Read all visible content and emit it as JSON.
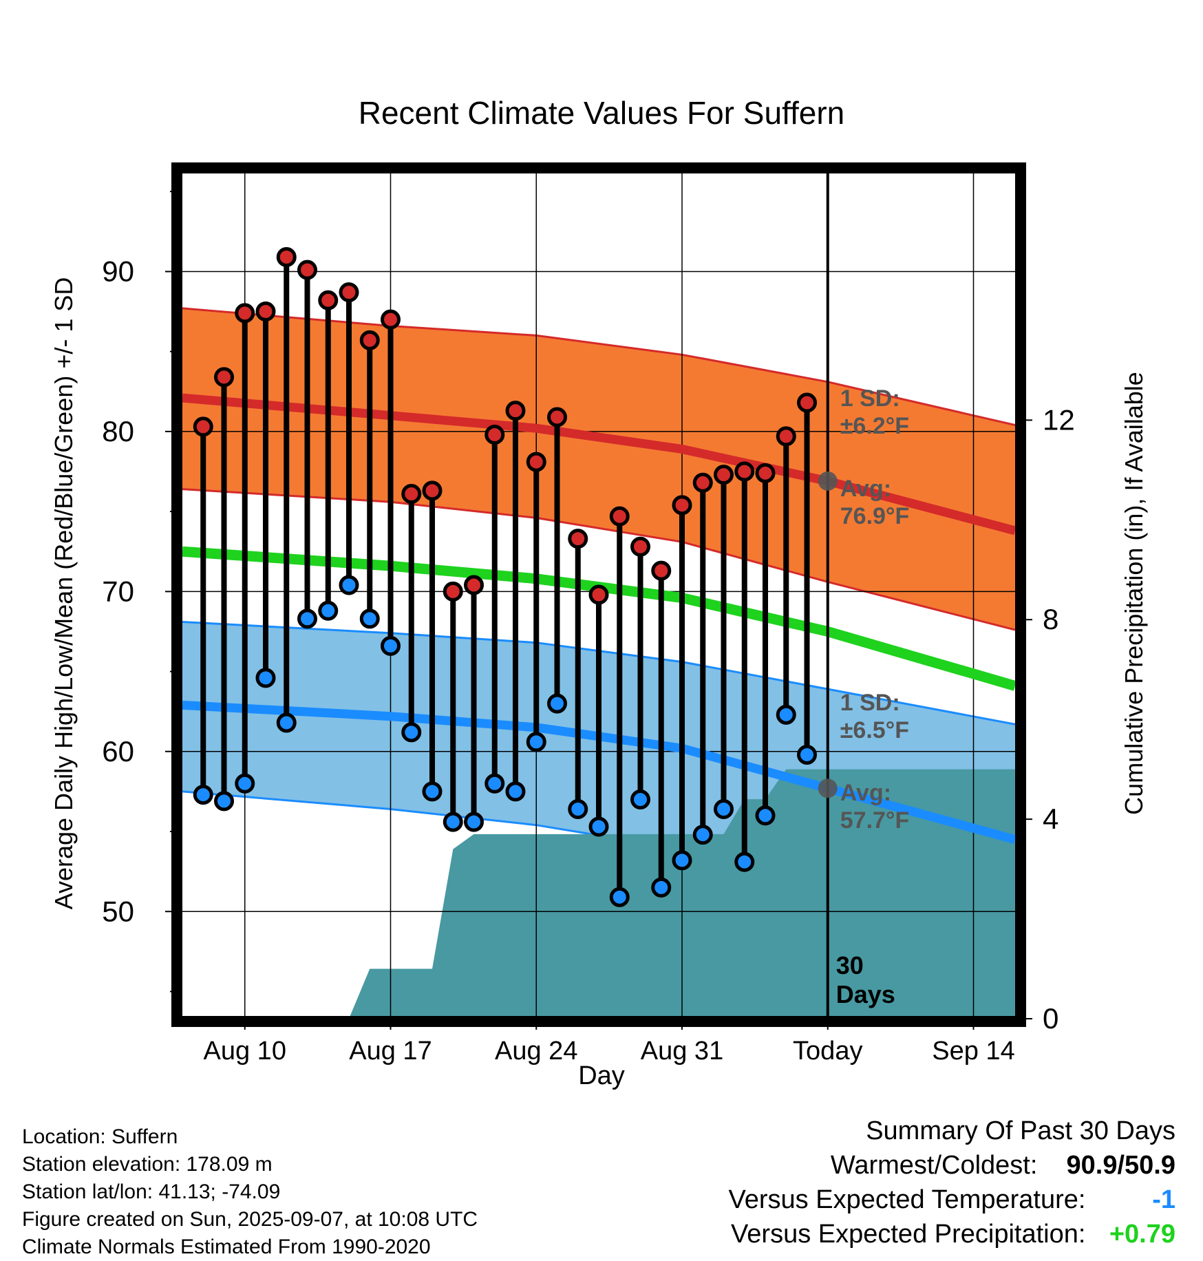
{
  "chart_data": {
    "type": "line",
    "title": "Recent Climate Values For Suffern",
    "xlabel": "Day",
    "ylabel_left": "Average Daily High/Low/Mean (Red/Blue/Green) +/- 1 SD",
    "ylabel_right": "Cumulative Precipitation (in), If Available",
    "ylim_left": [
      43.3,
      96.3
    ],
    "ylim_right": [
      0,
      17
    ],
    "xlim": [
      "2025-08-07",
      "2025-09-16"
    ],
    "x_ticks": [
      {
        "date": "2025-08-10",
        "label": "Aug 10"
      },
      {
        "date": "2025-08-17",
        "label": "Aug 17"
      },
      {
        "date": "2025-08-24",
        "label": "Aug 24"
      },
      {
        "date": "2025-08-31",
        "label": "Aug 31"
      },
      {
        "date": "2025-09-07",
        "label": "Today"
      },
      {
        "date": "2025-09-14",
        "label": "Sep 14"
      }
    ],
    "y_ticks_left": [
      "50",
      "60",
      "70",
      "80",
      "90"
    ],
    "y_ticks_right": [
      "0",
      "4",
      "8",
      "12"
    ],
    "grid": true,
    "today": "2025-09-07",
    "period_label": [
      "30",
      "Days"
    ],
    "normals": {
      "dates": [
        "2025-08-07",
        "2025-08-17",
        "2025-08-24",
        "2025-08-31",
        "2025-09-07",
        "2025-09-16"
      ],
      "high_mean": [
        82.1,
        81.0,
        80.2,
        78.9,
        76.9,
        73.8
      ],
      "high_upper": [
        87.7,
        86.6,
        86.0,
        84.8,
        83.1,
        80.4
      ],
      "high_lower": [
        76.4,
        75.6,
        74.6,
        73.1,
        70.6,
        67.6
      ],
      "low_mean": [
        62.9,
        62.2,
        61.5,
        60.2,
        57.7,
        54.5
      ],
      "low_upper": [
        68.1,
        67.4,
        66.8,
        65.6,
        63.9,
        61.7
      ],
      "low_lower": [
        57.5,
        56.4,
        55.4,
        53.9,
        51.2,
        47.8
      ],
      "avg_mean": [
        72.5,
        71.6,
        70.8,
        69.6,
        67.5,
        64.1
      ]
    },
    "high_annotation": {
      "sd": "1 SD:",
      "sd_value": "±6.2°F",
      "avg": "Avg:",
      "avg_value": "76.9°F",
      "today_value": 76.9
    },
    "low_annotation": {
      "sd": "1 SD:",
      "sd_value": "±6.5°F",
      "avg": "Avg:",
      "avg_value": "57.7°F",
      "today_value": 57.7
    },
    "observations": {
      "dates": [
        "2025-08-08",
        "2025-08-09",
        "2025-08-10",
        "2025-08-11",
        "2025-08-12",
        "2025-08-13",
        "2025-08-14",
        "2025-08-15",
        "2025-08-16",
        "2025-08-17",
        "2025-08-18",
        "2025-08-19",
        "2025-08-20",
        "2025-08-21",
        "2025-08-22",
        "2025-08-23",
        "2025-08-24",
        "2025-08-25",
        "2025-08-26",
        "2025-08-27",
        "2025-08-28",
        "2025-08-29",
        "2025-08-30",
        "2025-08-31",
        "2025-09-01",
        "2025-09-02",
        "2025-09-03",
        "2025-09-04",
        "2025-09-05",
        "2025-09-06"
      ],
      "high": [
        80.3,
        83.4,
        87.4,
        87.5,
        90.9,
        90.1,
        88.2,
        88.7,
        85.7,
        87.0,
        76.1,
        76.3,
        70.0,
        70.4,
        79.8,
        81.3,
        78.1,
        80.9,
        73.3,
        69.8,
        74.7,
        72.8,
        71.3,
        75.4,
        76.8,
        77.3,
        77.5,
        77.4,
        79.7,
        81.8
      ],
      "low": [
        57.3,
        56.9,
        58.0,
        64.6,
        61.8,
        68.3,
        68.8,
        70.4,
        68.3,
        66.6,
        61.2,
        57.5,
        55.6,
        55.6,
        58.0,
        57.5,
        60.6,
        63.0,
        56.4,
        55.3,
        50.9,
        57.0,
        51.5,
        53.2,
        54.8,
        56.4,
        53.1,
        56.0,
        62.3,
        59.8
      ]
    },
    "precipitation": {
      "dates": [
        "2025-08-15",
        "2025-08-16",
        "2025-08-18",
        "2025-08-19",
        "2025-08-20",
        "2025-08-21",
        "2025-09-02",
        "2025-09-03",
        "2025-09-04",
        "2025-09-05",
        "2025-09-16"
      ],
      "cumulative": [
        0.0,
        1.0,
        1.0,
        1.0,
        3.4,
        3.7,
        3.7,
        4.4,
        4.4,
        5.0,
        5.0
      ]
    },
    "colors": {
      "high_band": "#f47a32",
      "high_line": "#d42a2a",
      "low_band": "#82c0e6",
      "low_line": "#1a8cff",
      "mean_line": "#1ed21e",
      "precip": "#4899a2",
      "high_dot": "#d42a2a",
      "low_dot": "#1a8cff",
      "annotation": "#555555",
      "avg_marker": "#555555",
      "warm_value": "#000000",
      "temp_departure": "#1a8cff",
      "precip_departure": "#1ed21e"
    }
  },
  "info": {
    "location": "Location: Suffern",
    "elevation": "Station elevation: 178.09 m",
    "latlon": "Station lat/lon: 41.13; -74.09",
    "created": "Figure created on Sun, 2025-09-07, at 10:08 UTC",
    "normals": "Climate Normals Estimated From 1990-2020"
  },
  "summary": {
    "title": "Summary Of Past 30 Days",
    "warm_cold_label": "Warmest/Coldest:",
    "warm_cold_value": "90.9/50.9",
    "temp_label": "Versus Expected Temperature:",
    "temp_value": "-1",
    "precip_label": "Versus Expected Precipitation:",
    "precip_value": "+0.79"
  }
}
